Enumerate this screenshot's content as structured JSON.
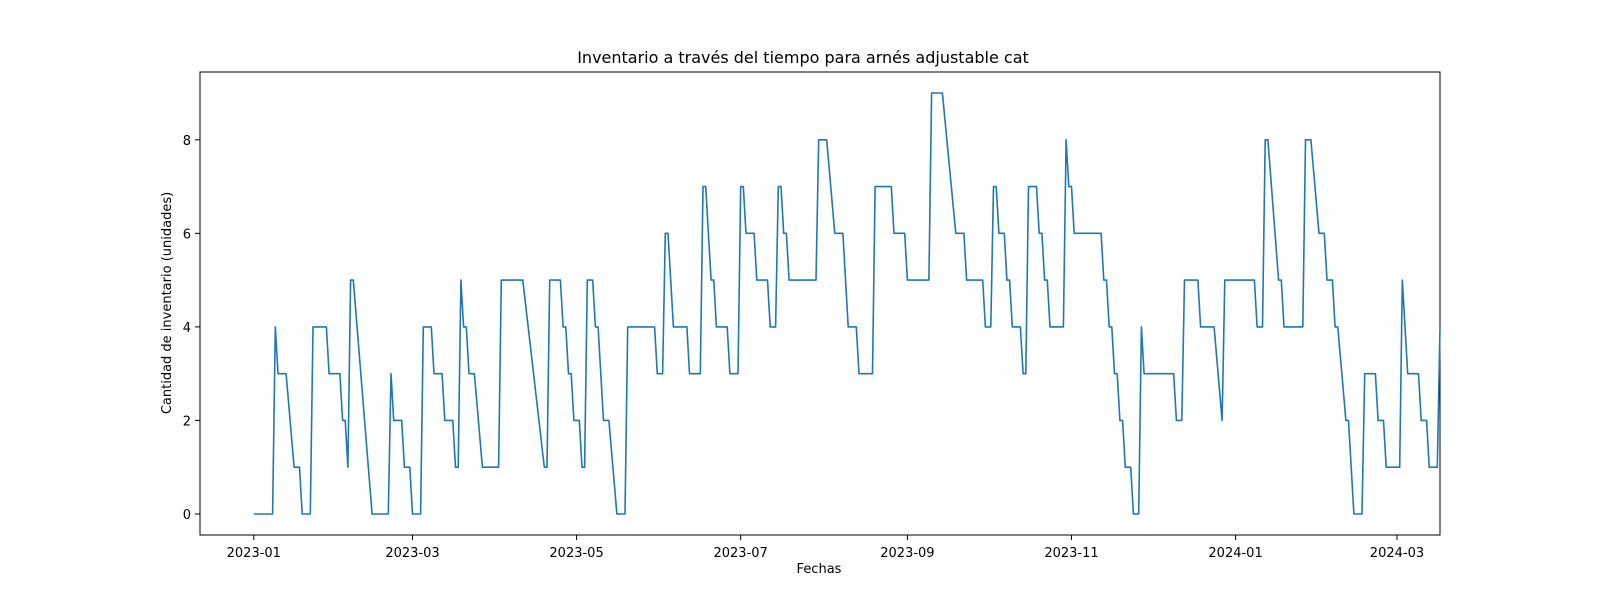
{
  "chart_data": {
    "type": "line",
    "title": "Inventario a través del tiempo para arnés adjustable cat",
    "xlabel": "Fechas",
    "ylabel": "Cantidad de inventario (unidades)",
    "xlim": [
      "2022-12-12",
      "2024-03-17"
    ],
    "ylim": [
      -0.45,
      9.45
    ],
    "grid": false,
    "line_color": "#1f77b4",
    "x_ticks": [
      {
        "date": "2023-01-01",
        "label": "2023-01"
      },
      {
        "date": "2023-03-01",
        "label": "2023-03"
      },
      {
        "date": "2023-05-01",
        "label": "2023-05"
      },
      {
        "date": "2023-07-01",
        "label": "2023-07"
      },
      {
        "date": "2023-09-01",
        "label": "2023-09"
      },
      {
        "date": "2023-11-01",
        "label": "2023-11"
      },
      {
        "date": "2024-01-01",
        "label": "2024-01"
      },
      {
        "date": "2024-03-01",
        "label": "2024-03"
      }
    ],
    "y_ticks": [
      {
        "value": 0,
        "label": "0"
      },
      {
        "value": 2,
        "label": "2"
      },
      {
        "value": 4,
        "label": "4"
      },
      {
        "value": 6,
        "label": "6"
      },
      {
        "value": 8,
        "label": "8"
      }
    ],
    "series": [
      {
        "points": [
          [
            "2023-01-01",
            0
          ],
          [
            "2023-01-08",
            0
          ],
          [
            "2023-01-09",
            4
          ],
          [
            "2023-01-10",
            3
          ],
          [
            "2023-01-13",
            3
          ],
          [
            "2023-01-16",
            1
          ],
          [
            "2023-01-18",
            1
          ],
          [
            "2023-01-19",
            0
          ],
          [
            "2023-01-22",
            0
          ],
          [
            "2023-01-23",
            4
          ],
          [
            "2023-01-28",
            4
          ],
          [
            "2023-01-29",
            3
          ],
          [
            "2023-02-02",
            3
          ],
          [
            "2023-02-03",
            2
          ],
          [
            "2023-02-04",
            2
          ],
          [
            "2023-02-05",
            1
          ],
          [
            "2023-02-06",
            5
          ],
          [
            "2023-02-07",
            5
          ],
          [
            "2023-02-14",
            0
          ],
          [
            "2023-02-20",
            0
          ],
          [
            "2023-02-21",
            3
          ],
          [
            "2023-02-22",
            2
          ],
          [
            "2023-02-25",
            2
          ],
          [
            "2023-02-26",
            1
          ],
          [
            "2023-02-28",
            1
          ],
          [
            "2023-03-01",
            0
          ],
          [
            "2023-03-04",
            0
          ],
          [
            "2023-03-05",
            4
          ],
          [
            "2023-03-08",
            4
          ],
          [
            "2023-03-09",
            3
          ],
          [
            "2023-03-12",
            3
          ],
          [
            "2023-03-13",
            2
          ],
          [
            "2023-03-16",
            2
          ],
          [
            "2023-03-17",
            1
          ],
          [
            "2023-03-18",
            1
          ],
          [
            "2023-03-19",
            5
          ],
          [
            "2023-03-20",
            4
          ],
          [
            "2023-03-21",
            4
          ],
          [
            "2023-03-22",
            3
          ],
          [
            "2023-03-24",
            3
          ],
          [
            "2023-03-27",
            1
          ],
          [
            "2023-04-02",
            1
          ],
          [
            "2023-04-03",
            5
          ],
          [
            "2023-04-11",
            5
          ],
          [
            "2023-04-19",
            1
          ],
          [
            "2023-04-20",
            1
          ],
          [
            "2023-04-21",
            5
          ],
          [
            "2023-04-25",
            5
          ],
          [
            "2023-04-26",
            4
          ],
          [
            "2023-04-27",
            4
          ],
          [
            "2023-04-28",
            3
          ],
          [
            "2023-04-29",
            3
          ],
          [
            "2023-04-30",
            2
          ],
          [
            "2023-05-02",
            2
          ],
          [
            "2023-05-03",
            1
          ],
          [
            "2023-05-04",
            1
          ],
          [
            "2023-05-05",
            5
          ],
          [
            "2023-05-07",
            5
          ],
          [
            "2023-05-08",
            4
          ],
          [
            "2023-05-09",
            4
          ],
          [
            "2023-05-11",
            2
          ],
          [
            "2023-05-13",
            2
          ],
          [
            "2023-05-16",
            0
          ],
          [
            "2023-05-19",
            0
          ],
          [
            "2023-05-20",
            4
          ],
          [
            "2023-05-30",
            4
          ],
          [
            "2023-05-31",
            3
          ],
          [
            "2023-06-02",
            3
          ],
          [
            "2023-06-03",
            6
          ],
          [
            "2023-06-04",
            6
          ],
          [
            "2023-06-06",
            4
          ],
          [
            "2023-06-11",
            4
          ],
          [
            "2023-06-12",
            3
          ],
          [
            "2023-06-16",
            3
          ],
          [
            "2023-06-17",
            7
          ],
          [
            "2023-06-18",
            7
          ],
          [
            "2023-06-20",
            5
          ],
          [
            "2023-06-21",
            5
          ],
          [
            "2023-06-22",
            4
          ],
          [
            "2023-06-26",
            4
          ],
          [
            "2023-06-27",
            3
          ],
          [
            "2023-06-30",
            3
          ],
          [
            "2023-07-01",
            7
          ],
          [
            "2023-07-02",
            7
          ],
          [
            "2023-07-03",
            6
          ],
          [
            "2023-07-06",
            6
          ],
          [
            "2023-07-07",
            5
          ],
          [
            "2023-07-11",
            5
          ],
          [
            "2023-07-12",
            4
          ],
          [
            "2023-07-14",
            4
          ],
          [
            "2023-07-15",
            7
          ],
          [
            "2023-07-16",
            7
          ],
          [
            "2023-07-17",
            6
          ],
          [
            "2023-07-18",
            6
          ],
          [
            "2023-07-19",
            5
          ],
          [
            "2023-07-29",
            5
          ],
          [
            "2023-07-30",
            8
          ],
          [
            "2023-08-02",
            8
          ],
          [
            "2023-08-05",
            6
          ],
          [
            "2023-08-08",
            6
          ],
          [
            "2023-08-10",
            4
          ],
          [
            "2023-08-13",
            4
          ],
          [
            "2023-08-14",
            3
          ],
          [
            "2023-08-19",
            3
          ],
          [
            "2023-08-20",
            7
          ],
          [
            "2023-08-26",
            7
          ],
          [
            "2023-08-27",
            6
          ],
          [
            "2023-08-31",
            6
          ],
          [
            "2023-09-01",
            5
          ],
          [
            "2023-09-09",
            5
          ],
          [
            "2023-09-10",
            9
          ],
          [
            "2023-09-14",
            9
          ],
          [
            "2023-09-19",
            6
          ],
          [
            "2023-09-22",
            6
          ],
          [
            "2023-09-23",
            5
          ],
          [
            "2023-09-29",
            5
          ],
          [
            "2023-09-30",
            4
          ],
          [
            "2023-10-02",
            4
          ],
          [
            "2023-10-03",
            7
          ],
          [
            "2023-10-04",
            7
          ],
          [
            "2023-10-05",
            6
          ],
          [
            "2023-10-07",
            6
          ],
          [
            "2023-10-08",
            5
          ],
          [
            "2023-10-09",
            5
          ],
          [
            "2023-10-10",
            4
          ],
          [
            "2023-10-13",
            4
          ],
          [
            "2023-10-14",
            3
          ],
          [
            "2023-10-15",
            3
          ],
          [
            "2023-10-16",
            7
          ],
          [
            "2023-10-19",
            7
          ],
          [
            "2023-10-20",
            6
          ],
          [
            "2023-10-21",
            6
          ],
          [
            "2023-10-22",
            5
          ],
          [
            "2023-10-23",
            5
          ],
          [
            "2023-10-24",
            4
          ],
          [
            "2023-10-29",
            4
          ],
          [
            "2023-10-30",
            8
          ],
          [
            "2023-10-31",
            7
          ],
          [
            "2023-11-01",
            7
          ],
          [
            "2023-11-02",
            6
          ],
          [
            "2023-11-12",
            6
          ],
          [
            "2023-11-13",
            5
          ],
          [
            "2023-11-14",
            5
          ],
          [
            "2023-11-15",
            4
          ],
          [
            "2023-11-16",
            4
          ],
          [
            "2023-11-17",
            3
          ],
          [
            "2023-11-18",
            3
          ],
          [
            "2023-11-19",
            2
          ],
          [
            "2023-11-20",
            2
          ],
          [
            "2023-11-21",
            1
          ],
          [
            "2023-11-23",
            1
          ],
          [
            "2023-11-24",
            0
          ],
          [
            "2023-11-26",
            0
          ],
          [
            "2023-11-27",
            4
          ],
          [
            "2023-11-28",
            3
          ],
          [
            "2023-12-09",
            3
          ],
          [
            "2023-12-10",
            2
          ],
          [
            "2023-12-12",
            2
          ],
          [
            "2023-12-13",
            5
          ],
          [
            "2023-12-18",
            5
          ],
          [
            "2023-12-19",
            4
          ],
          [
            "2023-12-24",
            4
          ],
          [
            "2023-12-27",
            2
          ],
          [
            "2023-12-28",
            5
          ],
          [
            "2024-01-08",
            5
          ],
          [
            "2024-01-09",
            4
          ],
          [
            "2024-01-11",
            4
          ],
          [
            "2024-01-12",
            8
          ],
          [
            "2024-01-13",
            8
          ],
          [
            "2024-01-17",
            5
          ],
          [
            "2024-01-18",
            5
          ],
          [
            "2024-01-19",
            4
          ],
          [
            "2024-01-26",
            4
          ],
          [
            "2024-01-27",
            8
          ],
          [
            "2024-01-29",
            8
          ],
          [
            "2024-02-01",
            6
          ],
          [
            "2024-02-03",
            6
          ],
          [
            "2024-02-04",
            5
          ],
          [
            "2024-02-06",
            5
          ],
          [
            "2024-02-07",
            4
          ],
          [
            "2024-02-08",
            4
          ],
          [
            "2024-02-11",
            2
          ],
          [
            "2024-02-12",
            2
          ],
          [
            "2024-02-14",
            0
          ],
          [
            "2024-02-17",
            0
          ],
          [
            "2024-02-18",
            3
          ],
          [
            "2024-02-22",
            3
          ],
          [
            "2024-02-23",
            2
          ],
          [
            "2024-02-25",
            2
          ],
          [
            "2024-02-26",
            1
          ],
          [
            "2024-03-02",
            1
          ],
          [
            "2024-03-03",
            5
          ],
          [
            "2024-03-05",
            3
          ],
          [
            "2024-03-09",
            3
          ],
          [
            "2024-03-10",
            2
          ],
          [
            "2024-03-12",
            2
          ],
          [
            "2024-03-13",
            1
          ],
          [
            "2024-03-16",
            1
          ],
          [
            "2024-03-17",
            4
          ]
        ]
      }
    ]
  }
}
